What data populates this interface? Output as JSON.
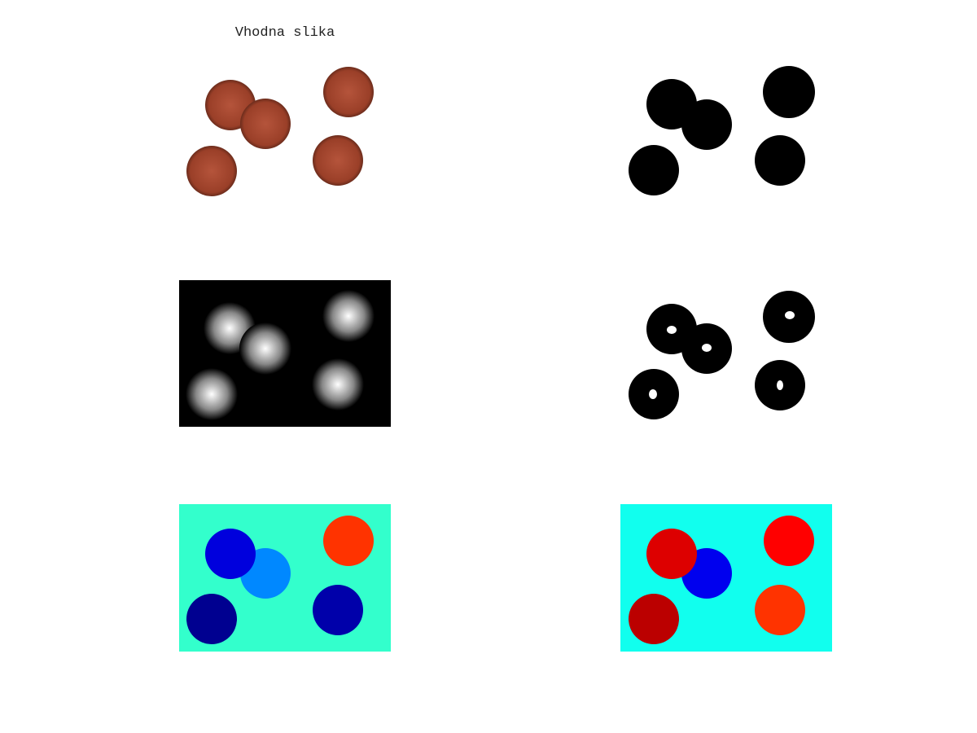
{
  "title": "Vhodna slika"
}
